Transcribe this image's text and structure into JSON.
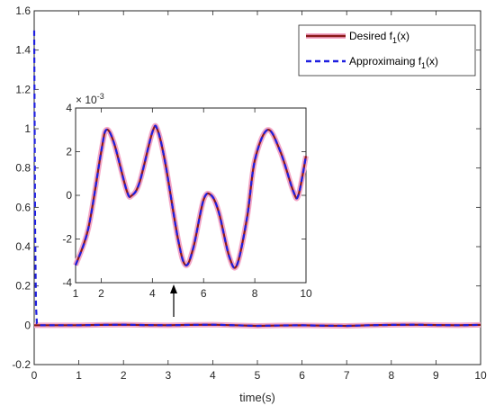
{
  "chart_data": [
    {
      "id": "main",
      "type": "line",
      "xlabel": "time(s)",
      "ylabel": "",
      "xlim": [
        0,
        10
      ],
      "ylim": [
        -0.2,
        1.6
      ],
      "xticks": [
        0,
        1,
        2,
        3,
        4,
        5,
        6,
        7,
        8,
        9,
        10
      ],
      "xtick_labels": [
        "0",
        "1",
        "2",
        "3",
        "4",
        "5",
        "6",
        "7",
        "8",
        "9",
        "10"
      ],
      "yticks": [
        -0.2,
        0,
        0.2,
        0.4,
        0.6,
        0.8,
        1,
        1.2,
        1.4,
        1.6
      ],
      "ytick_labels": [
        "-0.2",
        "0",
        "0.2",
        "0.4",
        "0.6",
        "0.8",
        "1",
        "1.2",
        "1.4",
        "1.6"
      ],
      "legend": {
        "placement": "top-right"
      },
      "series": [
        {
          "name": "Desired f1(x)",
          "legend_main": "Desired f",
          "legend_sub": "1",
          "legend_tail": "(x)",
          "style": "solid",
          "color": "#8B1A1A",
          "halo": "#F4A8C8",
          "x": [
            0,
            0.5,
            1,
            1.5,
            2,
            2.5,
            3,
            3.5,
            4,
            4.5,
            5,
            5.5,
            6,
            6.5,
            7,
            7.5,
            8,
            8.5,
            9,
            9.5,
            10
          ],
          "y": [
            0.0,
            0.0,
            0.0,
            0.002,
            0.003,
            0.001,
            0.0,
            0.002,
            0.003,
            0.0,
            -0.003,
            -0.001,
            0.0,
            -0.002,
            -0.003,
            0.0,
            0.002,
            0.003,
            0.001,
            0.0,
            0.002
          ]
        },
        {
          "name": "Approximaing f1(x)",
          "legend_main": "Approximaing f",
          "legend_sub": "1",
          "legend_tail": "(x)",
          "style": "dashed",
          "color": "#1F1FE0",
          "x": [
            0,
            0.01,
            0.02,
            0.04,
            0.06,
            0.1,
            0.5,
            1,
            1.5,
            2,
            2.5,
            3,
            3.5,
            4,
            4.5,
            5,
            5.5,
            6,
            6.5,
            7,
            7.5,
            8,
            8.5,
            9,
            9.5,
            10
          ],
          "y": [
            1.5,
            1.0,
            0.5,
            0.1,
            0.01,
            0.0,
            0.0,
            0.0,
            0.002,
            0.003,
            0.001,
            0.0,
            0.002,
            0.003,
            0.0,
            -0.003,
            -0.001,
            0.0,
            -0.002,
            -0.003,
            0.0,
            0.002,
            0.003,
            0.001,
            0.0,
            0.002
          ]
        }
      ]
    },
    {
      "id": "inset",
      "type": "line",
      "xlim": [
        1,
        10
      ],
      "ylim": [
        -4,
        4
      ],
      "xticks": [
        1,
        2,
        4,
        6,
        8,
        10
      ],
      "xtick_labels": [
        "1",
        "2",
        "4",
        "6",
        "8",
        "10"
      ],
      "yticks": [
        -4,
        -2,
        0,
        2,
        4
      ],
      "ytick_labels": [
        "-4",
        "-2",
        "0",
        "2",
        "4"
      ],
      "exponent_base": "× 10",
      "exponent_power": "-3",
      "series": [
        {
          "name": "Desired",
          "color": "#8B1A1A",
          "halo": "#F4A8C8",
          "x": [
            1.0,
            1.5,
            2.0,
            2.2,
            2.5,
            3.0,
            3.2,
            3.5,
            4.0,
            4.2,
            4.5,
            5.0,
            5.3,
            5.6,
            6.0,
            6.3,
            6.6,
            7.0,
            7.3,
            7.7,
            8.0,
            8.5,
            9.0,
            9.5,
            9.7,
            10.0
          ],
          "y": [
            -3.2,
            -1.5,
            2.0,
            3.0,
            2.4,
            0.2,
            0.0,
            0.6,
            2.9,
            3.0,
            1.5,
            -2.0,
            -3.2,
            -2.4,
            -0.2,
            0.0,
            -0.8,
            -2.8,
            -3.2,
            -1.0,
            1.6,
            3.0,
            2.0,
            0.2,
            0.0,
            1.8
          ]
        },
        {
          "name": "Approximating",
          "color": "#1F1FE0",
          "x": [
            1.0,
            1.5,
            2.0,
            2.2,
            2.5,
            3.0,
            3.2,
            3.5,
            4.0,
            4.2,
            4.5,
            5.0,
            5.3,
            5.6,
            6.0,
            6.3,
            6.6,
            7.0,
            7.3,
            7.7,
            8.0,
            8.5,
            9.0,
            9.5,
            9.7,
            10.0
          ],
          "y": [
            -3.2,
            -1.5,
            2.0,
            3.0,
            2.4,
            0.2,
            0.0,
            0.6,
            2.9,
            3.0,
            1.5,
            -2.0,
            -3.2,
            -2.4,
            -0.2,
            0.0,
            -0.8,
            -2.8,
            -3.2,
            -1.0,
            1.6,
            3.0,
            2.0,
            0.2,
            0.0,
            1.8
          ]
        }
      ]
    }
  ]
}
